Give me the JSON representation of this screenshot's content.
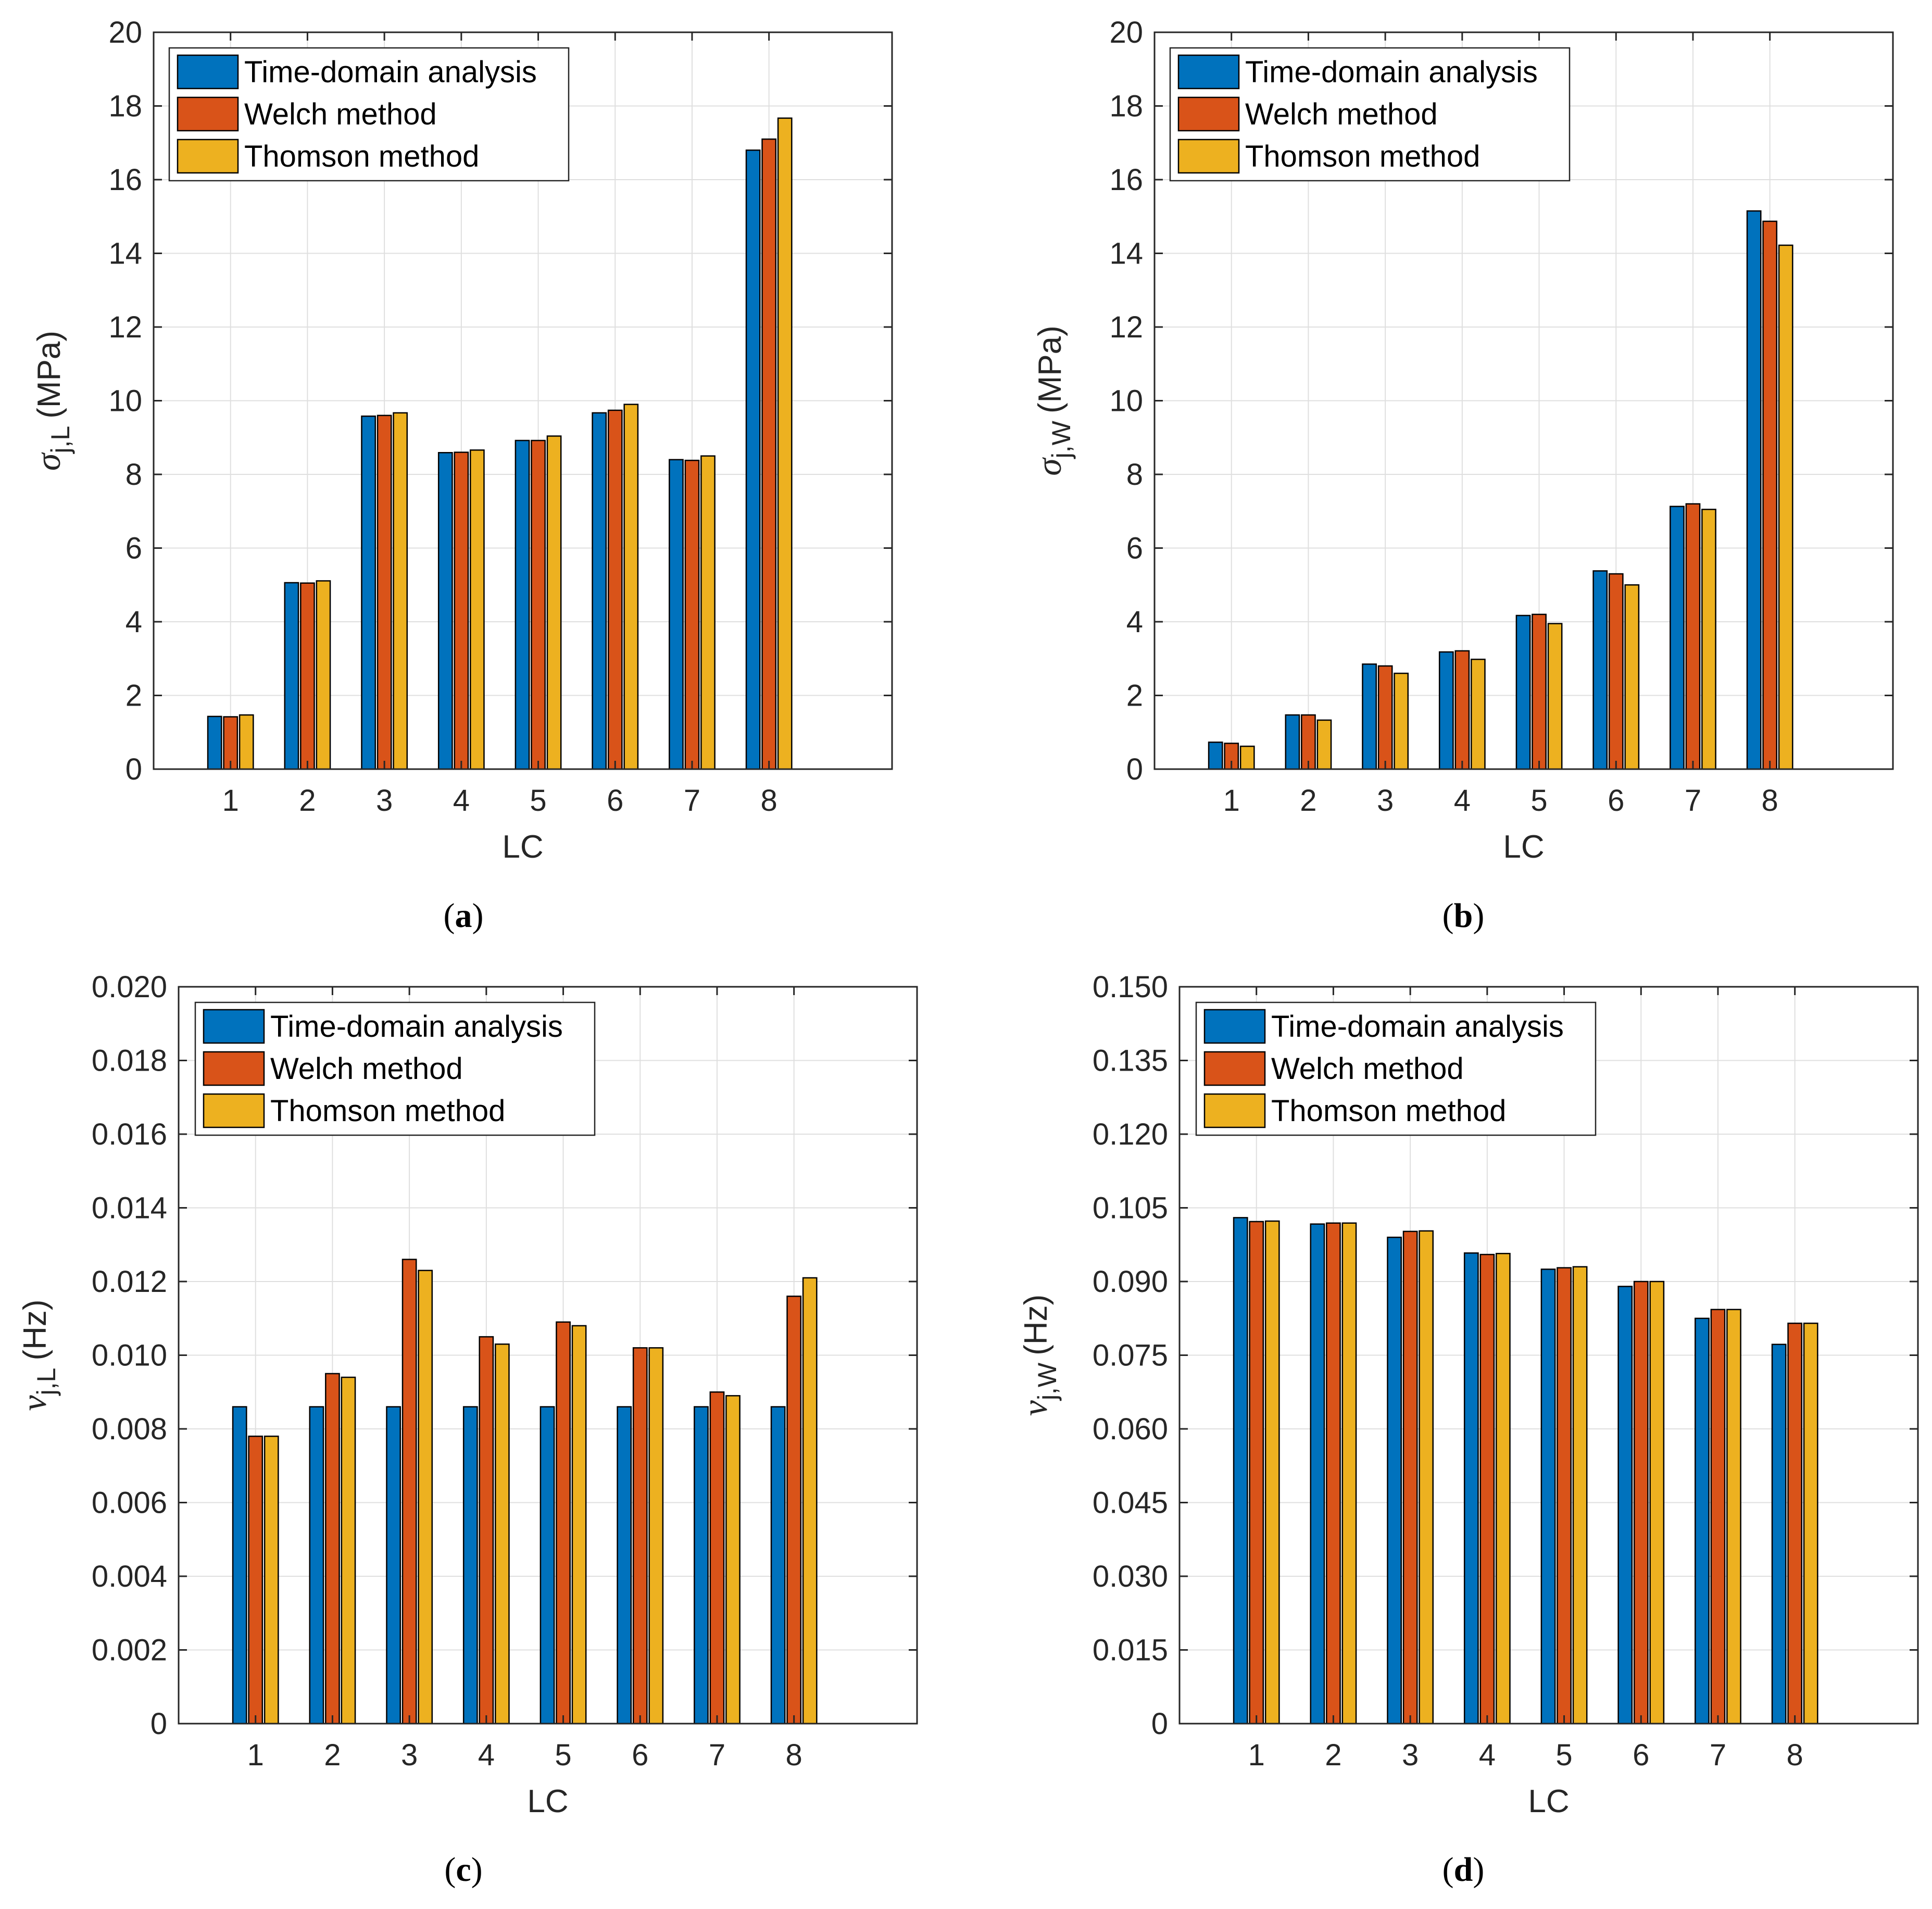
{
  "chart_data": [
    {
      "type": "bar",
      "caption_letter": "a",
      "xlabel": "LC",
      "ylabel_symbol": "σ",
      "ylabel_subscript": "j,L",
      "ylabel_unit": "(MPa)",
      "ylim": [
        0,
        20
      ],
      "yticks": [
        "0",
        "2",
        "4",
        "6",
        "8",
        "10",
        "12",
        "14",
        "16",
        "18",
        "20"
      ],
      "categories": [
        "1",
        "2",
        "3",
        "4",
        "5",
        "6",
        "7",
        "8"
      ],
      "grid": true,
      "legend_position": "top-left",
      "series": [
        {
          "name": "Time-domain analysis",
          "color": "#0072BD",
          "values": [
            1.43,
            5.06,
            9.58,
            8.59,
            8.92,
            9.67,
            8.4,
            16.8
          ]
        },
        {
          "name": "Welch method",
          "color": "#D95319",
          "values": [
            1.42,
            5.05,
            9.6,
            8.6,
            8.92,
            9.74,
            8.38,
            17.1
          ]
        },
        {
          "name": "Thomson method",
          "color": "#EDB120",
          "values": [
            1.47,
            5.11,
            9.67,
            8.66,
            9.04,
            9.9,
            8.5,
            17.67
          ]
        }
      ]
    },
    {
      "type": "bar",
      "caption_letter": "b",
      "xlabel": "LC",
      "ylabel_symbol": "σ",
      "ylabel_subscript": "j,W",
      "ylabel_unit": "(MPa)",
      "ylim": [
        0,
        20
      ],
      "yticks": [
        "0",
        "2",
        "4",
        "6",
        "8",
        "10",
        "12",
        "14",
        "16",
        "18",
        "20"
      ],
      "categories": [
        "1",
        "2",
        "3",
        "4",
        "5",
        "6",
        "7",
        "8"
      ],
      "grid": true,
      "legend_position": "top-left",
      "series": [
        {
          "name": "Time-domain analysis",
          "color": "#0072BD",
          "values": [
            0.73,
            1.47,
            2.85,
            3.18,
            4.17,
            5.38,
            7.13,
            15.15
          ]
        },
        {
          "name": "Welch method",
          "color": "#D95319",
          "values": [
            0.7,
            1.47,
            2.8,
            3.21,
            4.2,
            5.3,
            7.2,
            14.87
          ]
        },
        {
          "name": "Thomson method",
          "color": "#EDB120",
          "values": [
            0.62,
            1.33,
            2.6,
            2.98,
            3.95,
            5.0,
            7.05,
            14.22
          ]
        }
      ]
    },
    {
      "type": "bar",
      "caption_letter": "c",
      "xlabel": "LC",
      "ylabel_symbol": "ν",
      "ylabel_subscript": "j,L",
      "ylabel_unit": "(Hz)",
      "ylim": [
        0,
        0.02
      ],
      "yticks": [
        "0",
        "0.002",
        "0.004",
        "0.006",
        "0.008",
        "0.010",
        "0.012",
        "0.014",
        "0.016",
        "0.018",
        "0.020"
      ],
      "categories": [
        "1",
        "2",
        "3",
        "4",
        "5",
        "6",
        "7",
        "8"
      ],
      "grid": true,
      "legend_position": "top-left",
      "series": [
        {
          "name": "Time-domain analysis",
          "color": "#0072BD",
          "values": [
            0.0086,
            0.0086,
            0.0086,
            0.0086,
            0.0086,
            0.0086,
            0.0086,
            0.0086
          ]
        },
        {
          "name": "Welch method",
          "color": "#D95319",
          "values": [
            0.0078,
            0.0095,
            0.0126,
            0.0105,
            0.0109,
            0.0102,
            0.009,
            0.0116
          ]
        },
        {
          "name": "Thomson method",
          "color": "#EDB120",
          "values": [
            0.0078,
            0.0094,
            0.0123,
            0.0103,
            0.0108,
            0.0102,
            0.0089,
            0.0121
          ]
        }
      ]
    },
    {
      "type": "bar",
      "caption_letter": "d",
      "xlabel": "LC",
      "ylabel_symbol": "ν",
      "ylabel_subscript": "j,W",
      "ylabel_unit": "(Hz)",
      "ylim": [
        0,
        0.15
      ],
      "yticks": [
        "0",
        "0.015",
        "0.030",
        "0.045",
        "0.060",
        "0.075",
        "0.090",
        "0.105",
        "0.120",
        "0.135",
        "0.150"
      ],
      "categories": [
        "1",
        "2",
        "3",
        "4",
        "5",
        "6",
        "7",
        "8"
      ],
      "grid": true,
      "legend_position": "top-left",
      "series": [
        {
          "name": "Time-domain analysis",
          "color": "#0072BD",
          "values": [
            0.103,
            0.1017,
            0.099,
            0.0958,
            0.0925,
            0.089,
            0.0825,
            0.0772
          ]
        },
        {
          "name": "Welch method",
          "color": "#D95319",
          "values": [
            0.1022,
            0.1019,
            0.1002,
            0.0955,
            0.0928,
            0.09,
            0.0843,
            0.0815
          ]
        },
        {
          "name": "Thomson method",
          "color": "#EDB120",
          "values": [
            0.1023,
            0.1019,
            0.1003,
            0.0957,
            0.093,
            0.09,
            0.0843,
            0.0815
          ]
        }
      ]
    }
  ]
}
